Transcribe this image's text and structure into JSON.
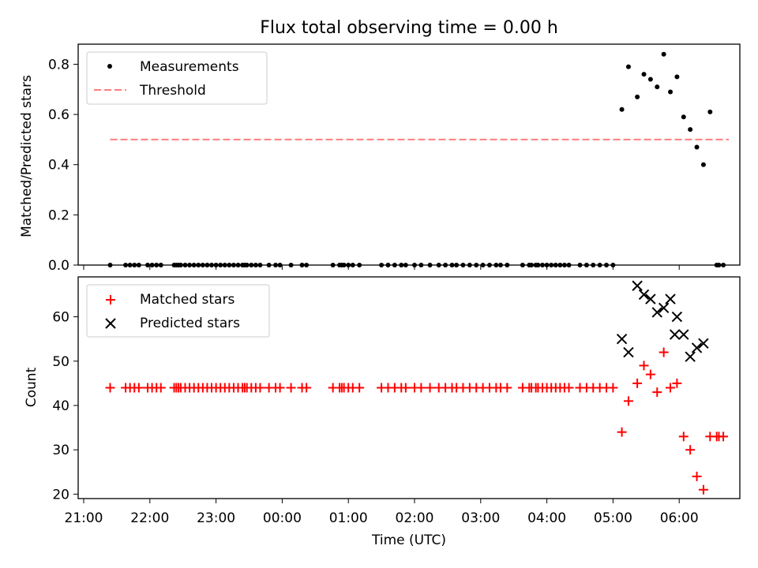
{
  "chart_data": [
    {
      "type": "scatter",
      "title": "Flux total observing time = 0.00 h",
      "xlabel": "",
      "ylabel": "Matched/Predicted stars",
      "ylim": [
        0,
        0.88
      ],
      "yticks": [
        "0.0",
        "0.2",
        "0.4",
        "0.6",
        "0.8"
      ],
      "ytick_values": [
        0,
        0.2,
        0.4,
        0.6,
        0.8
      ],
      "legend_position": "upper-left",
      "series": [
        {
          "name": "Measurements",
          "marker": "dot",
          "color": "#000000",
          "x": [
            "21:24",
            "21:38",
            "21:42",
            "21:46",
            "21:50",
            "21:58",
            "22:02",
            "22:06",
            "22:10",
            "22:22",
            "22:24",
            "22:26",
            "22:28",
            "22:32",
            "22:36",
            "22:40",
            "22:44",
            "22:48",
            "22:52",
            "22:56",
            "23:00",
            "23:04",
            "23:08",
            "23:12",
            "23:16",
            "23:20",
            "23:24",
            "23:26",
            "23:28",
            "23:32",
            "23:36",
            "23:40",
            "23:48",
            "23:54",
            "23:58",
            "00:08",
            "00:18",
            "00:22",
            "00:46",
            "00:52",
            "00:54",
            "00:56",
            "01:00",
            "01:04",
            "01:10",
            "01:30",
            "01:36",
            "01:42",
            "01:48",
            "01:52",
            "02:00",
            "02:06",
            "02:14",
            "02:22",
            "02:28",
            "02:34",
            "02:38",
            "02:44",
            "02:50",
            "02:56",
            "03:02",
            "03:08",
            "03:14",
            "03:18",
            "03:24",
            "03:38",
            "03:44",
            "03:46",
            "03:50",
            "03:52",
            "03:56",
            "04:00",
            "04:04",
            "04:08",
            "04:12",
            "04:16",
            "04:20",
            "04:30",
            "04:36",
            "04:42",
            "04:48",
            "04:54",
            "05:00",
            "05:08",
            "05:14",
            "05:22",
            "05:28",
            "05:34",
            "05:40",
            "05:46",
            "05:52",
            "05:58",
            "06:04",
            "06:10",
            "06:16",
            "06:22",
            "06:28",
            "06:34",
            "06:36",
            "06:40"
          ],
          "y": [
            0,
            0,
            0,
            0,
            0,
            0,
            0,
            0,
            0,
            0,
            0,
            0,
            0,
            0,
            0,
            0,
            0,
            0,
            0,
            0,
            0,
            0,
            0,
            0,
            0,
            0,
            0,
            0,
            0,
            0,
            0,
            0,
            0,
            0,
            0,
            0,
            0,
            0,
            0,
            0,
            0,
            0,
            0,
            0,
            0,
            0,
            0,
            0,
            0,
            0,
            0,
            0,
            0,
            0,
            0,
            0,
            0,
            0,
            0,
            0,
            0,
            0,
            0,
            0,
            0,
            0,
            0,
            0,
            0,
            0,
            0,
            0,
            0,
            0,
            0,
            0,
            0,
            0,
            0,
            0,
            0,
            0,
            0,
            0.62,
            0.79,
            0.67,
            0.76,
            0.74,
            0.71,
            0.84,
            0.69,
            0.75,
            0.59,
            0.54,
            0.47,
            0.4,
            0.61,
            0,
            0,
            0
          ]
        },
        {
          "name": "Threshold",
          "line": "dashed",
          "color": "#ff7f7f",
          "x": [
            "21:24",
            "06:45"
          ],
          "y": [
            0.5,
            0.5
          ]
        }
      ]
    },
    {
      "type": "scatter",
      "title": "",
      "xlabel": "Time (UTC)",
      "ylabel": "Count",
      "ylim": [
        19,
        69
      ],
      "yticks": [
        "20",
        "30",
        "40",
        "50",
        "60"
      ],
      "ytick_values": [
        20,
        30,
        40,
        50,
        60
      ],
      "xticks": [
        "21:00",
        "22:00",
        "23:00",
        "00:00",
        "01:00",
        "02:00",
        "03:00",
        "04:00",
        "05:00",
        "06:00"
      ],
      "legend_position": "upper-left",
      "series": [
        {
          "name": "Matched stars",
          "marker": "plus",
          "color": "#ff0000",
          "x": [
            "21:24",
            "21:38",
            "21:42",
            "21:46",
            "21:50",
            "21:58",
            "22:02",
            "22:06",
            "22:10",
            "22:22",
            "22:24",
            "22:26",
            "22:28",
            "22:32",
            "22:36",
            "22:40",
            "22:44",
            "22:48",
            "22:52",
            "22:56",
            "23:00",
            "23:04",
            "23:08",
            "23:12",
            "23:16",
            "23:20",
            "23:24",
            "23:26",
            "23:28",
            "23:32",
            "23:36",
            "23:40",
            "23:48",
            "23:54",
            "23:58",
            "00:08",
            "00:18",
            "00:22",
            "00:46",
            "00:52",
            "00:54",
            "00:56",
            "01:00",
            "01:04",
            "01:10",
            "01:30",
            "01:36",
            "01:42",
            "01:48",
            "01:52",
            "02:00",
            "02:06",
            "02:14",
            "02:22",
            "02:28",
            "02:34",
            "02:38",
            "02:44",
            "02:50",
            "02:56",
            "03:02",
            "03:08",
            "03:14",
            "03:18",
            "03:24",
            "03:38",
            "03:44",
            "03:46",
            "03:50",
            "03:52",
            "03:56",
            "04:00",
            "04:04",
            "04:08",
            "04:12",
            "04:16",
            "04:20",
            "04:30",
            "04:36",
            "04:42",
            "04:48",
            "04:54",
            "05:00",
            "05:08",
            "05:14",
            "05:22",
            "05:28",
            "05:34",
            "05:40",
            "05:46",
            "05:52",
            "05:58",
            "06:04",
            "06:10",
            "06:16",
            "06:22",
            "06:28",
            "06:34",
            "06:36",
            "06:40"
          ],
          "y": [
            44,
            44,
            44,
            44,
            44,
            44,
            44,
            44,
            44,
            44,
            44,
            44,
            44,
            44,
            44,
            44,
            44,
            44,
            44,
            44,
            44,
            44,
            44,
            44,
            44,
            44,
            44,
            44,
            44,
            44,
            44,
            44,
            44,
            44,
            44,
            44,
            44,
            44,
            44,
            44,
            44,
            44,
            44,
            44,
            44,
            44,
            44,
            44,
            44,
            44,
            44,
            44,
            44,
            44,
            44,
            44,
            44,
            44,
            44,
            44,
            44,
            44,
            44,
            44,
            44,
            44,
            44,
            44,
            44,
            44,
            44,
            44,
            44,
            44,
            44,
            44,
            44,
            44,
            44,
            44,
            44,
            44,
            44,
            34,
            41,
            45,
            49,
            47,
            43,
            52,
            44,
            45,
            33,
            30,
            24,
            21,
            33,
            33,
            33,
            33
          ]
        },
        {
          "name": "Predicted stars",
          "marker": "x",
          "color": "#000000",
          "x": [
            "05:08",
            "05:14",
            "05:22",
            "05:28",
            "05:34",
            "05:40",
            "05:46",
            "05:52",
            "05:58",
            "06:04",
            "06:10",
            "06:16",
            "05:56"
          ],
          "y": [
            55,
            52,
            67,
            65,
            64,
            61,
            62,
            64,
            60,
            56,
            51,
            53,
            56
          ]
        }
      ],
      "extra_predicted": [
        54
      ]
    }
  ]
}
